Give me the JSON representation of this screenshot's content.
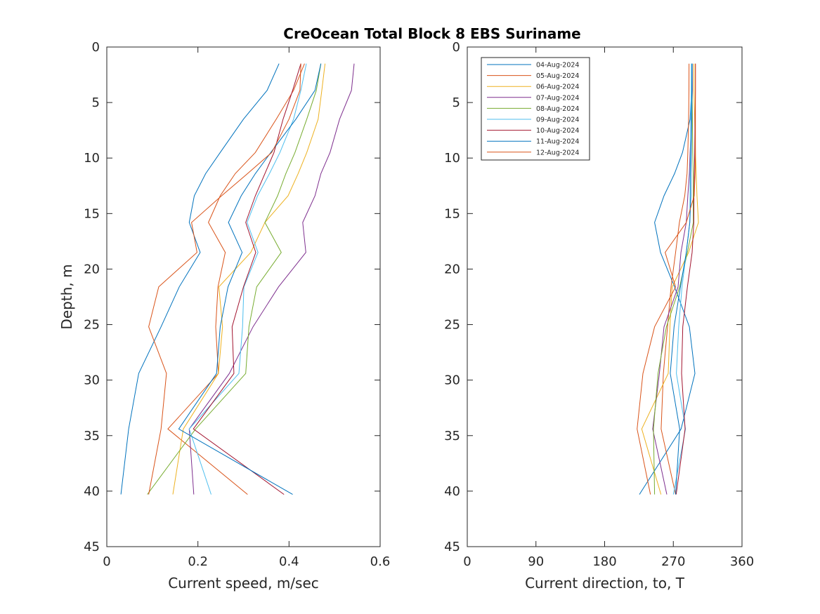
{
  "chart_data": {
    "type": "line",
    "title": "CreOcean Total Block 8 EBS Suriname",
    "depth": [
      1.5,
      3.9,
      6.5,
      9.5,
      11.4,
      13.4,
      15.8,
      18.5,
      21.6,
      25.2,
      29.4,
      34.4,
      40.3
    ],
    "legend": {
      "placement": "top-left (right panel)"
    },
    "series": [
      {
        "name": "04-Aug-2024",
        "color": "#0072BD",
        "speed": [
          0.378,
          0.352,
          0.3,
          0.249,
          0.217,
          0.192,
          0.181,
          0.205,
          0.159,
          0.119,
          0.07,
          0.048,
          0.031
        ],
        "direction": [
          294.6,
          294,
          292,
          282,
          271.6,
          257.8,
          245.5,
          253.2,
          271.6,
          291,
          298.3,
          280.2,
          225.6
        ]
      },
      {
        "name": "05-Aug-2024",
        "color": "#D95319",
        "speed": [
          0.434,
          0.41,
          0.372,
          0.326,
          0.282,
          0.249,
          0.223,
          0.26,
          0.244,
          0.239,
          0.245,
          0.134,
          0.309
        ],
        "direction": [
          290.6,
          290.5,
          290,
          289,
          288,
          285,
          278,
          273,
          267,
          262.4,
          257,
          254,
          273
        ]
      },
      {
        "name": "06-Aug-2024",
        "color": "#EDB120",
        "speed": [
          0.479,
          0.472,
          0.464,
          0.439,
          0.42,
          0.398,
          0.347,
          0.316,
          0.246,
          0.254,
          0.245,
          0.168,
          0.145
        ],
        "direction": [
          296.8,
          297,
          298,
          299,
          300,
          301,
          302.9,
          290,
          268.5,
          265.5,
          263.3,
          228.6,
          253.8
        ]
      },
      {
        "name": "07-Aug-2024",
        "color": "#7E2F8E",
        "speed": [
          0.543,
          0.537,
          0.511,
          0.49,
          0.47,
          0.457,
          0.43,
          0.437,
          0.377,
          0.321,
          0.269,
          0.181,
          0.191
        ],
        "direction": [
          294.8,
          295,
          294,
          292,
          291,
          289,
          287,
          280,
          276.2,
          257.8,
          251.7,
          243,
          261.5
        ]
      },
      {
        "name": "08-Aug-2024",
        "color": "#77AC30",
        "speed": [
          0.47,
          0.46,
          0.439,
          0.413,
          0.393,
          0.375,
          0.347,
          0.383,
          0.329,
          0.312,
          0.305,
          0.195,
          0.089
        ],
        "direction": [
          294,
          294.5,
          295,
          295.5,
          296,
          296,
          296.2,
          288.5,
          278.3,
          260.9,
          250,
          244,
          245.5
        ]
      },
      {
        "name": "09-Aug-2024",
        "color": "#4DBEEE",
        "speed": [
          0.438,
          0.426,
          0.41,
          0.38,
          0.357,
          0.331,
          0.308,
          0.332,
          0.301,
          0.298,
          0.29,
          0.181,
          0.229
        ],
        "direction": [
          293.7,
          293.5,
          293,
          292.5,
          292,
          292,
          291.6,
          287,
          281.4,
          277,
          274,
          286,
          270
        ]
      },
      {
        "name": "10-Aug-2024",
        "color": "#A2142F",
        "speed": [
          0.426,
          0.408,
          0.387,
          0.367,
          0.347,
          0.326,
          0.305,
          0.327,
          0.3,
          0.275,
          0.279,
          0.19,
          0.389
        ],
        "direction": [
          299,
          299,
          298.5,
          298,
          297.5,
          297,
          296.8,
          294.6,
          288.5,
          282.4,
          280.8,
          285.4,
          273.7
        ]
      },
      {
        "name": "11-Aug-2024",
        "color": "#0072BD",
        "speed": [
          0.47,
          0.457,
          0.415,
          0.36,
          0.326,
          0.295,
          0.267,
          0.297,
          0.266,
          0.249,
          0.241,
          0.158,
          0.408
        ],
        "direction": [
          294.6,
          294.5,
          294,
          293.5,
          293,
          293,
          291.6,
          287,
          279.3,
          271,
          266,
          278.3,
          273
        ]
      },
      {
        "name": "12-Aug-2024",
        "color": "#D95319",
        "speed": [
          0.426,
          0.424,
          0.4,
          0.362,
          0.309,
          0.252,
          0.186,
          0.198,
          0.114,
          0.092,
          0.131,
          0.119,
          0.092
        ],
        "direction": [
          299,
          299,
          299,
          299,
          298.5,
          297.4,
          287,
          259.3,
          273,
          245.5,
          230.2,
          222.5,
          240
        ]
      }
    ],
    "panels": [
      {
        "id": "speed",
        "xlabel": "Current speed, m/sec",
        "ylabel": "Depth, m",
        "xlim": [
          0,
          0.6
        ],
        "ylim": [
          0,
          45
        ],
        "y_reversed": true,
        "xticks": [
          "0",
          "0.2",
          "0.4",
          "0.6"
        ],
        "xtick_values": [
          0,
          0.2,
          0.4,
          0.6
        ],
        "yticks": [
          "0",
          "5",
          "10",
          "15",
          "20",
          "25",
          "30",
          "35",
          "40",
          "45"
        ]
      },
      {
        "id": "direction",
        "xlabel": "Current direction, to, T",
        "ylabel": "",
        "xlim": [
          0,
          360
        ],
        "ylim": [
          0,
          45
        ],
        "y_reversed": true,
        "xticks": [
          "0",
          "90",
          "180",
          "270",
          "360"
        ],
        "xtick_values": [
          0,
          90,
          180,
          270,
          360
        ],
        "yticks": [
          "0",
          "5",
          "10",
          "15",
          "20",
          "25",
          "30",
          "35",
          "40",
          "45"
        ]
      }
    ]
  }
}
